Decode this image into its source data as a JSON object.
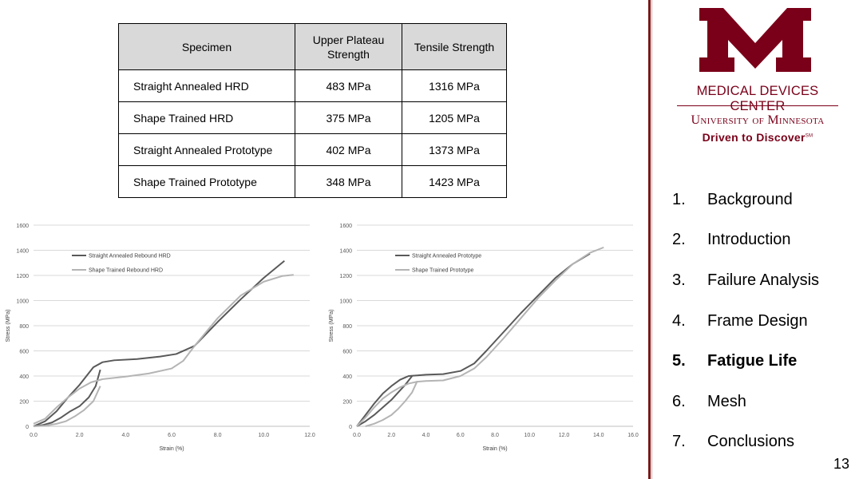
{
  "table": {
    "headers": [
      "Specimen",
      "Upper Plateau Strength",
      "Tensile Strength"
    ],
    "rows": [
      [
        "Straight Annealed HRD",
        "483 MPa",
        "1316 MPa"
      ],
      [
        "Shape Trained HRD",
        "375 MPa",
        "1205 MPa"
      ],
      [
        "Straight Annealed Prototype",
        "402 MPa",
        "1373 MPa"
      ],
      [
        "Shape Trained  Prototype",
        "348 MPa",
        "1423 MPa"
      ]
    ]
  },
  "chart_data": [
    {
      "type": "line",
      "xlabel": "Strain (%)",
      "ylabel": "Stress (MPa)",
      "xlim": [
        0,
        12
      ],
      "ylim": [
        0,
        1600
      ],
      "xticks": [
        "0.0",
        "2.0",
        "4.0",
        "6.0",
        "8.0",
        "10.0",
        "12.0"
      ],
      "yticks": [
        "0",
        "200",
        "400",
        "600",
        "800",
        "1000",
        "1200",
        "1400",
        "1600"
      ],
      "legend": "top-left",
      "series": [
        {
          "name": "Straight Annealed Rebound HRD",
          "color": "#595959",
          "x": [
            0,
            0.5,
            1.0,
            1.5,
            2.0,
            2.3,
            2.6,
            3.0,
            3.5,
            4.5,
            5.5,
            6.2,
            7.0,
            8.0,
            9.0,
            10.0,
            10.9
          ],
          "y": [
            0,
            40,
            120,
            230,
            330,
            400,
            470,
            510,
            525,
            535,
            555,
            575,
            640,
            830,
            1010,
            1180,
            1316
          ],
          "unload_x": [
            2.9,
            2.7,
            2.4,
            2.0,
            1.6,
            1.2,
            0.8,
            0.4,
            0
          ],
          "unload_y": [
            450,
            320,
            230,
            160,
            120,
            70,
            30,
            10,
            0
          ]
        },
        {
          "name": "Shape Trained Rebound HRD",
          "color": "#b4b4b4",
          "x": [
            0,
            0.5,
            1.0,
            1.5,
            2.0,
            2.5,
            3.0,
            4.0,
            5.0,
            6.0,
            6.5,
            7.0,
            8.0,
            9.0,
            10.0,
            10.8,
            11.3
          ],
          "y": [
            20,
            60,
            150,
            230,
            300,
            350,
            375,
            395,
            420,
            460,
            520,
            640,
            860,
            1040,
            1150,
            1195,
            1205
          ],
          "unload_x": [
            2.9,
            2.6,
            2.2,
            1.8,
            1.4,
            1.0,
            0.5,
            0
          ],
          "unload_y": [
            320,
            200,
            130,
            80,
            40,
            20,
            5,
            0
          ]
        }
      ]
    },
    {
      "type": "line",
      "xlabel": "Strain (%)",
      "ylabel": "Stress (MPa)",
      "xlim": [
        0,
        16
      ],
      "ylim": [
        0,
        1600
      ],
      "xticks": [
        "0.0",
        "2.0",
        "4.0",
        "6.0",
        "8.0",
        "10.0",
        "12.0",
        "14.0",
        "16.0"
      ],
      "yticks": [
        "0",
        "200",
        "400",
        "600",
        "800",
        "1000",
        "1200",
        "1400",
        "1600"
      ],
      "legend": "top-left",
      "series": [
        {
          "name": "Straight Annealed Prototype",
          "color": "#595959",
          "x": [
            0,
            0.5,
            1.0,
            1.5,
            2.0,
            2.5,
            3.0,
            3.5,
            4.0,
            5.0,
            6.0,
            6.8,
            7.5,
            8.5,
            9.5,
            10.5,
            11.5,
            12.5,
            13.5
          ],
          "y": [
            0,
            90,
            180,
            260,
            320,
            370,
            400,
            405,
            410,
            415,
            440,
            500,
            600,
            750,
            900,
            1040,
            1180,
            1290,
            1373
          ],
          "unload_x": [
            3.2,
            2.8,
            2.4,
            2.0,
            1.5,
            1.0,
            0.5,
            0
          ],
          "unload_y": [
            400,
            330,
            270,
            210,
            150,
            90,
            40,
            0
          ]
        },
        {
          "name": "Shape Trained Prototype",
          "color": "#b4b4b4",
          "x": [
            0,
            0.5,
            1.0,
            1.5,
            2.0,
            2.5,
            3.0,
            3.5,
            4.0,
            5.0,
            6.0,
            6.8,
            7.5,
            8.5,
            9.5,
            10.5,
            11.5,
            12.5,
            13.5,
            14.3
          ],
          "y": [
            0,
            70,
            150,
            220,
            270,
            310,
            340,
            355,
            360,
            365,
            400,
            460,
            550,
            700,
            860,
            1020,
            1160,
            1290,
            1380,
            1423
          ],
          "unload_x": [
            3.5,
            3.2,
            2.8,
            2.4,
            2.0,
            1.5,
            1.0,
            0.5
          ],
          "unload_y": [
            360,
            270,
            200,
            140,
            90,
            50,
            20,
            0
          ]
        }
      ]
    }
  ],
  "logo": {
    "center_name": "MEDICAL DEVICES CENTER",
    "university": "University of Minnesota",
    "tagline": "Driven to Discover",
    "tagline_mark": "SM",
    "registered": "®",
    "brand_color": "#7a0019"
  },
  "nav": {
    "items": [
      {
        "num": "1.",
        "label": "Background"
      },
      {
        "num": "2.",
        "label": "Introduction"
      },
      {
        "num": "3.",
        "label": "Failure Analysis"
      },
      {
        "num": "4.",
        "label": "Frame Design"
      },
      {
        "num": "5.",
        "label": "Fatigue Life",
        "active": true
      },
      {
        "num": "6.",
        "label": "Mesh"
      },
      {
        "num": "7.",
        "label": "Conclusions"
      }
    ]
  },
  "page_number": "13"
}
